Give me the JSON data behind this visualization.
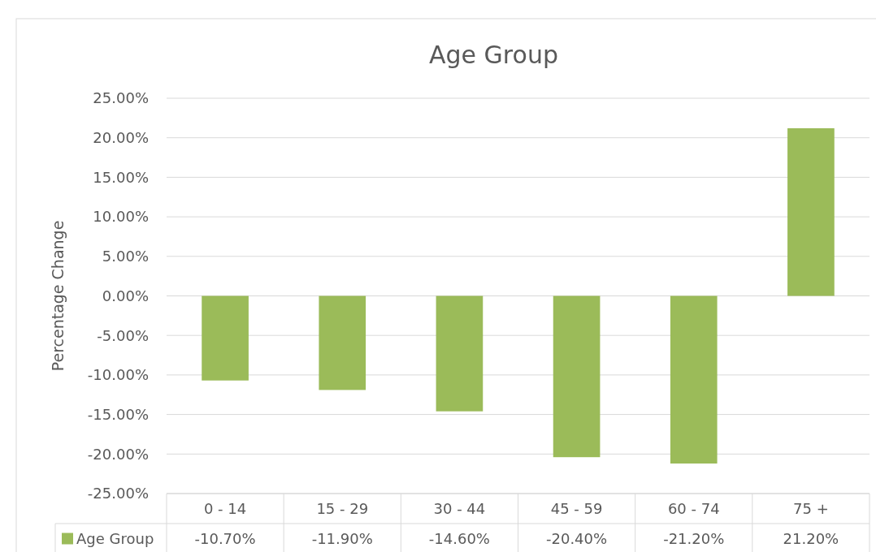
{
  "chart_data": {
    "type": "bar",
    "title": "Age Group",
    "ylabel": "Percentage Change",
    "categories": [
      "0 - 14",
      "15 - 29",
      "30 - 44",
      "45 - 59",
      "60 - 74",
      "75 +"
    ],
    "series": [
      {
        "name": "Age Group",
        "color": "#9bbb59",
        "values": [
          -10.7,
          -11.9,
          -14.6,
          -20.4,
          -21.2,
          21.2
        ],
        "value_labels": [
          "-10.70%",
          "-11.90%",
          "-14.60%",
          "-20.40%",
          "-21.20%",
          "21.20%"
        ]
      }
    ],
    "ylim": [
      -25,
      25
    ],
    "yticks": [
      {
        "value": -25,
        "label": "-25.00%"
      },
      {
        "value": -20,
        "label": "-20.00%"
      },
      {
        "value": -15,
        "label": "-15.00%"
      },
      {
        "value": -10,
        "label": "-10.00%"
      },
      {
        "value": -5,
        "label": "-5.00%"
      },
      {
        "value": 0,
        "label": "0.00%"
      },
      {
        "value": 5,
        "label": "5.00%"
      },
      {
        "value": 10,
        "label": "10.00%"
      },
      {
        "value": 15,
        "label": "15.00%"
      },
      {
        "value": 20,
        "label": "20.00%"
      },
      {
        "value": 25,
        "label": "25.00%"
      }
    ],
    "grid": "y",
    "legend": "bottom"
  }
}
